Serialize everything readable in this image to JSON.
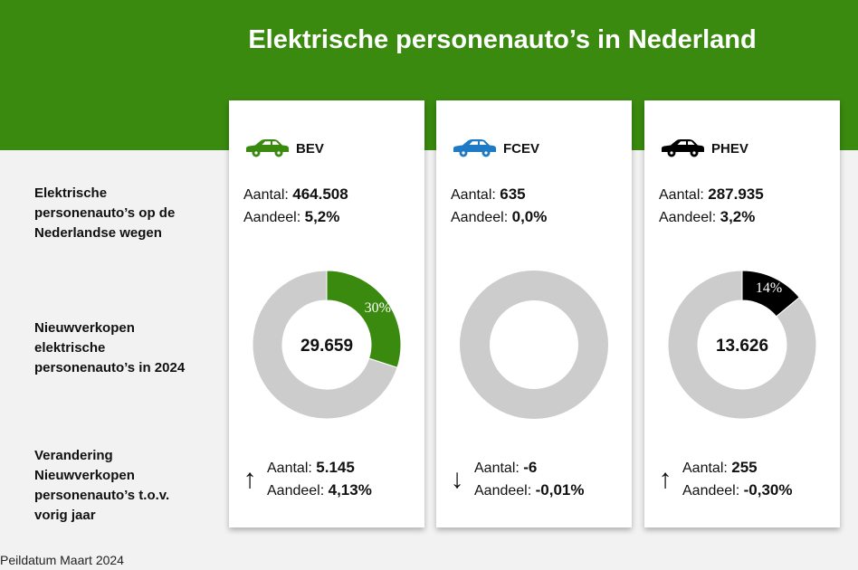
{
  "header": {
    "title": "Elektrische personenauto’s in Nederland"
  },
  "row_labels": {
    "stock": [
      "Elektrische",
      "personenauto’s op de",
      "Nederlandse wegen"
    ],
    "sales": [
      "Nieuwverkopen",
      "elektrische",
      "personenauto’s in 2024"
    ],
    "change": [
      "Verandering",
      "Nieuwverkopen",
      "personenauto’s t.o.v.",
      "vorig jaar"
    ]
  },
  "labels": {
    "aantal": "Aantal:",
    "aandeel": "Aandeel:"
  },
  "cards": [
    {
      "name": "BEV",
      "icon": "car-icon",
      "color": "#3a8a0f",
      "stock_aantal": "464.508",
      "stock_aandeel": "5,2%",
      "center_value": "29.659",
      "slice_label": "30%",
      "slice_color": "#3a8a0f",
      "slice_label_color": "#ffffff",
      "arrow": "↑",
      "arrow_icon": "arrow-up-icon",
      "change_aantal": "5.145",
      "change_aandeel": "4,13%"
    },
    {
      "name": "FCEV",
      "icon": "car-icon",
      "color": "#1e7ac4",
      "stock_aantal": "635",
      "stock_aandeel": "0,0%",
      "center_value": "",
      "slice_label": "",
      "slice_color": "#1e7ac4",
      "slice_label_color": "#ffffff",
      "arrow": "↓",
      "arrow_icon": "arrow-down-icon",
      "change_aantal": "-6",
      "change_aandeel": "-0,01%"
    },
    {
      "name": "PHEV",
      "icon": "car-icon",
      "color": "#000000",
      "stock_aantal": "287.935",
      "stock_aandeel": "3,2%",
      "center_value": "13.626",
      "slice_label": "14%",
      "slice_color": "#000000",
      "slice_label_color": "#ffffff",
      "arrow": "↑",
      "arrow_icon": "arrow-up-icon",
      "change_aantal": "255",
      "change_aandeel": "-0,30%"
    }
  ],
  "footer": {
    "text": "Peildatum Maart 2024"
  },
  "chart_data": [
    {
      "type": "pie",
      "series_label": "BEV",
      "values": [
        30,
        70
      ],
      "slices": [
        "BEV",
        "overig"
      ],
      "center_label": "29.659",
      "colors": [
        "#3a8a0f",
        "#cccccc"
      ]
    },
    {
      "type": "pie",
      "series_label": "FCEV",
      "values": [
        0,
        100
      ],
      "slices": [
        "FCEV",
        "overig"
      ],
      "center_label": "",
      "colors": [
        "#1e7ac4",
        "#cccccc"
      ]
    },
    {
      "type": "pie",
      "series_label": "PHEV",
      "values": [
        14,
        86
      ],
      "slices": [
        "PHEV",
        "overig"
      ],
      "center_label": "13.626",
      "colors": [
        "#000000",
        "#cccccc"
      ]
    }
  ]
}
